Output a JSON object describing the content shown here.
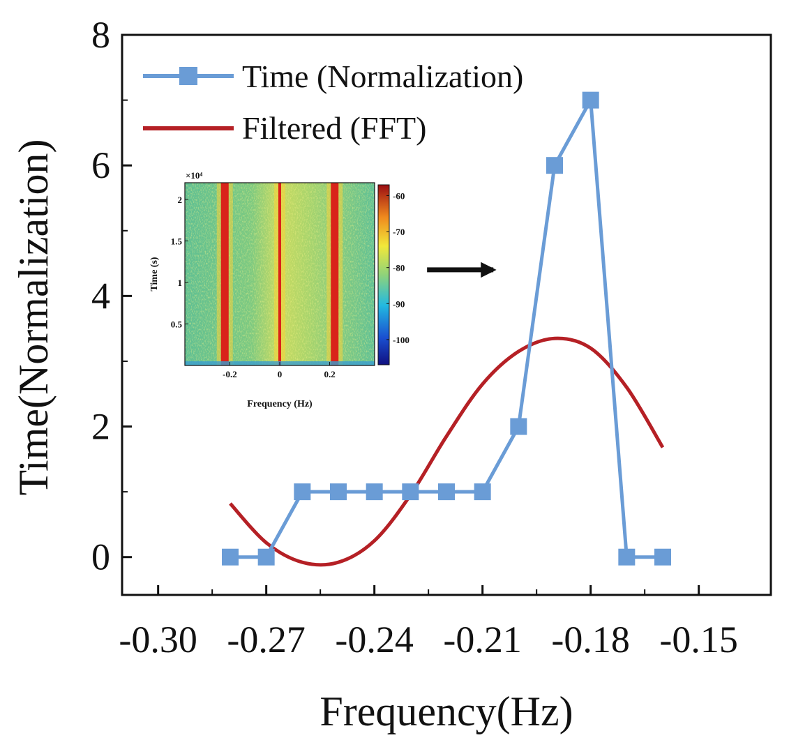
{
  "chart_data": {
    "type": "line",
    "xlabel": "Frequency(Hz)",
    "ylabel": "Time(Normalization)",
    "xlim": [
      -0.31,
      -0.13
    ],
    "ylim": [
      -0.58,
      8
    ],
    "x_ticks": [
      -0.3,
      -0.27,
      -0.24,
      -0.21,
      -0.18,
      -0.15
    ],
    "x_tick_labels": [
      "-0.30",
      "-0.27",
      "-0.24",
      "-0.21",
      "-0.18",
      "-0.15"
    ],
    "y_ticks": [
      0,
      2,
      4,
      6,
      8
    ],
    "y_tick_labels": [
      "0",
      "2",
      "4",
      "6",
      "8"
    ],
    "legend_position": "top-left",
    "series": [
      {
        "name": "Time (Normalization)",
        "color": "#6a9cd6",
        "marker": "square",
        "style": "line-markers",
        "x": [
          -0.28,
          -0.27,
          -0.26,
          -0.25,
          -0.24,
          -0.23,
          -0.22,
          -0.21,
          -0.2,
          -0.19,
          -0.18,
          -0.17,
          -0.16
        ],
        "y": [
          0,
          0,
          1,
          1,
          1,
          1,
          1,
          1,
          2,
          6,
          7,
          0,
          0
        ]
      },
      {
        "name": "Filtered (FFT)",
        "color": "#b52025",
        "style": "line",
        "x": [
          -0.28,
          -0.27,
          -0.26,
          -0.25,
          -0.24,
          -0.23,
          -0.22,
          -0.21,
          -0.2,
          -0.19,
          -0.18,
          -0.17,
          -0.16
        ],
        "y": [
          0.82,
          0.22,
          -0.08,
          -0.08,
          0.25,
          0.95,
          1.85,
          2.65,
          3.15,
          3.35,
          3.2,
          2.6,
          1.68
        ]
      }
    ],
    "annotations": [
      {
        "type": "arrow",
        "direction": "right",
        "x": -0.207,
        "y": 4.4
      }
    ],
    "inset": {
      "type": "heatmap",
      "xlabel": "Frequency (Hz)",
      "ylabel": "Time (s)",
      "exponent_label": "×10⁴",
      "x_tick_labels": [
        "-0.2",
        "0",
        "0.2"
      ],
      "x_ticks": [
        -0.2,
        0,
        0.2
      ],
      "xlim": [
        -0.38,
        0.38
      ],
      "y_tick_labels": [
        "0.5",
        "1",
        "1.5",
        "2"
      ],
      "y_ticks": [
        0.5,
        1,
        1.5,
        2
      ],
      "ylim": [
        0,
        2.2
      ],
      "colorbar_tick_labels": [
        "-60",
        "-70",
        "-80",
        "-90",
        "-100"
      ],
      "colorbar_ticks": [
        -60,
        -70,
        -80,
        -90,
        -100
      ],
      "colorbar_range": [
        -107,
        -57
      ],
      "ridges_hz": [
        -0.22,
        0,
        0.22
      ]
    }
  }
}
